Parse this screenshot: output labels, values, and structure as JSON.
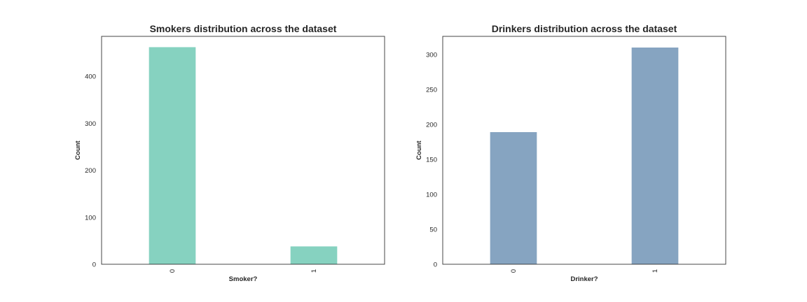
{
  "chart_data": [
    {
      "type": "bar",
      "title": "Smokers distribution across the dataset",
      "xlabel": "Smoker?",
      "ylabel": "Count",
      "categories": [
        "0",
        "1"
      ],
      "values": [
        462,
        38
      ],
      "ylim": [
        0,
        485
      ],
      "yticks": [
        "0",
        "100",
        "200",
        "300",
        "400"
      ],
      "color": "#86d2c0",
      "grid": false
    },
    {
      "type": "bar",
      "title": "Drinkers distribution across the dataset",
      "xlabel": "Drinker?",
      "ylabel": "Count",
      "categories": [
        "0",
        "1"
      ],
      "values": [
        189,
        310
      ],
      "ylim": [
        0,
        326
      ],
      "yticks": [
        "0",
        "50",
        "100",
        "150",
        "200",
        "250",
        "300"
      ],
      "color": "#86a4c1",
      "grid": false
    }
  ]
}
